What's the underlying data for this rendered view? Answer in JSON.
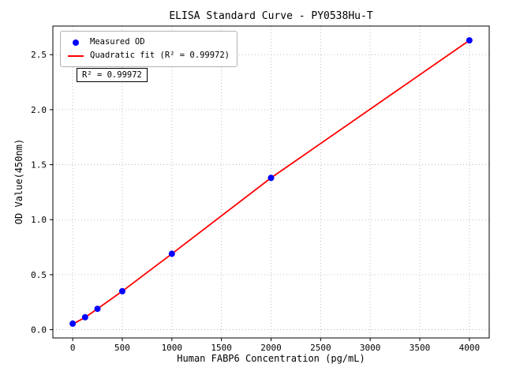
{
  "figure": {
    "background": "#ffffff",
    "frame_color": "#000000",
    "grid_color": "#b0b0b0"
  },
  "chart_data": {
    "type": "scatter",
    "title": "ELISA Standard Curve - PY0538Hu-T",
    "xlabel": "Human FABP6 Concentration (pg/mL)",
    "ylabel": "OD Value(450nm)",
    "xlim": [
      -200,
      4200
    ],
    "ylim": [
      -0.075,
      2.76
    ],
    "x_ticks": [
      0,
      500,
      1000,
      1500,
      2000,
      2500,
      3000,
      3500,
      4000
    ],
    "x_tick_labels": [
      "0",
      "500",
      "1000",
      "1500",
      "2000",
      "2500",
      "3000",
      "3500",
      "4000"
    ],
    "y_ticks": [
      0.0,
      0.5,
      1.0,
      1.5,
      2.0,
      2.5
    ],
    "y_tick_labels": [
      "0.0",
      "0.5",
      "1.0",
      "1.5",
      "2.0",
      "2.5"
    ],
    "grid": true,
    "grid_style": "dotted",
    "annotation": "R² = 0.99972",
    "legend": {
      "position": "upper-left",
      "entries": [
        {
          "label": "Measured OD",
          "marker": "dot",
          "color": "#0000ff"
        },
        {
          "label": "Quadratic fit (R² = 0.99972)",
          "marker": "line",
          "color": "#ff0000"
        }
      ]
    },
    "series": [
      {
        "name": "Measured OD",
        "type": "scatter",
        "color": "#0000ff",
        "marker_radius": 4,
        "x": [
          0,
          125,
          250,
          500,
          1000,
          2000,
          4000
        ],
        "y": [
          0.055,
          0.113,
          0.19,
          0.35,
          0.69,
          1.38,
          2.63
        ]
      },
      {
        "name": "Quadratic fit",
        "type": "line",
        "color": "#ff0000",
        "line_width": 1.8,
        "x": [
          0,
          125,
          250,
          500,
          1000,
          2000,
          4000
        ],
        "y": [
          0.05,
          0.112,
          0.19,
          0.35,
          0.69,
          1.38,
          2.63
        ]
      }
    ]
  }
}
